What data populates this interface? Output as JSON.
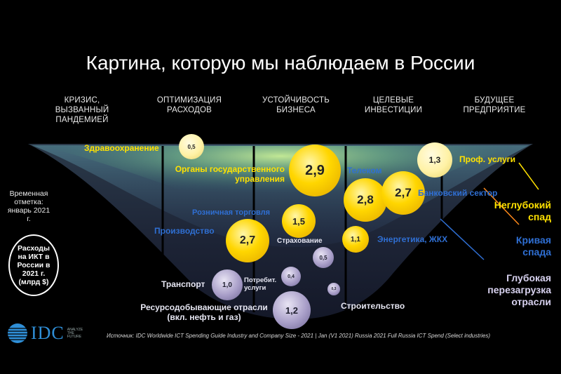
{
  "title": "Картина, которую мы наблюдаем в России",
  "columns": [
    "КРИЗИС,\nВЫЗВАННЫЙ\nПАНДЕМИЕЙ",
    "ОПТИМИЗАЦИЯ\nРАСХОДОВ",
    "УСТОЙЧИВОСТЬ\nБИЗНЕСА",
    "ЦЕЛЕВЫЕ\nИНВЕСТИЦИИ",
    "БУДУЩЕЕ\nПРЕДПРИЯТИЕ"
  ],
  "timestamp_note": "Временная\nотметка:\nянварь 2021 г.",
  "circle_note": "Расходы\nна ИКТ в\nРоссии в\n2021 г.\n(млрд $)",
  "industries": [
    {
      "label": "Здравоохранение",
      "value": "0,5",
      "tier": "yellow"
    },
    {
      "label": "Органы государственного\nуправления",
      "value": "2,9",
      "tier": "yellow"
    },
    {
      "label": "Проф. услуги",
      "value": "1,3",
      "tier": "yellow"
    },
    {
      "label": "Телеком",
      "value": "2,8",
      "tier": "blue"
    },
    {
      "label": "Банковский сектор",
      "value": "2,7",
      "tier": "blue"
    },
    {
      "label": "Розничная торговля",
      "value": "1,5",
      "tier": "blue"
    },
    {
      "label": "Производство",
      "value": "2,7",
      "tier": "blue"
    },
    {
      "label": "Страхование",
      "value": "0,5",
      "tier": "white"
    },
    {
      "label": "Энергетика, ЖКХ",
      "value": "1,1",
      "tier": "blue"
    },
    {
      "label": "Транспорт",
      "value": "1,0",
      "tier": "white"
    },
    {
      "label": "Потребит.\nуслуги",
      "value": "0,4",
      "tier": "white"
    },
    {
      "label": "Ресурсодобывающие отрасли\n(вкл. нефть и газ)",
      "value": "1,2",
      "tier": "white"
    },
    {
      "label": "Строительство",
      "value": "0,3",
      "tier": "white"
    }
  ],
  "legend": {
    "shallow": "Неглубокий\nспад",
    "curve": "Кривая\nспада",
    "deep": "Глубокая\nперезагрузка\nотрасли"
  },
  "colors": {
    "yellow": "#ffe100",
    "blue": "#2f6fd3",
    "lavender": "#d8d2f0",
    "idc_blue": "#2f8fd8"
  },
  "source": "Источник: IDC Worldwide ICT Spending Guide Industry and Company Size - 2021 | Jan (V1 2021) Russia 2021 Full Russia ICT Spend (Select industries)",
  "logo": {
    "text": "IDC",
    "tagline": "ANALYZE\nTHE\nFUTURE"
  }
}
